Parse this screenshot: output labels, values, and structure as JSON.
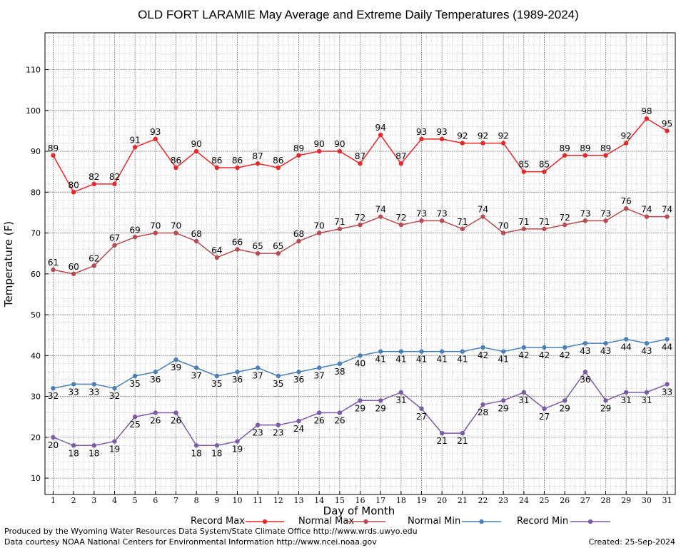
{
  "chart_data": {
    "type": "line",
    "title": "OLD FORT LARAMIE May Average and Extreme Daily Temperatures (1989-2024)",
    "xlabel": "Day of Month",
    "ylabel": "Temperature (F)",
    "x": [
      1,
      2,
      3,
      4,
      5,
      6,
      7,
      8,
      9,
      10,
      11,
      12,
      13,
      14,
      15,
      16,
      17,
      18,
      19,
      20,
      21,
      22,
      23,
      24,
      25,
      26,
      27,
      28,
      29,
      30,
      31
    ],
    "xlim": [
      0.6,
      31.4
    ],
    "ylim": [
      6,
      119
    ],
    "yticks": [
      10,
      20,
      30,
      40,
      50,
      60,
      70,
      80,
      90,
      100,
      110
    ],
    "grid": true,
    "legend_position": "bottom",
    "series": [
      {
        "name": "Record Max",
        "color": "#e8272a",
        "label_pos": "above",
        "values": [
          89,
          80,
          82,
          82,
          91,
          93,
          86,
          90,
          86,
          86,
          87,
          86,
          89,
          90,
          90,
          87,
          94,
          87,
          93,
          93,
          92,
          92,
          92,
          85,
          85,
          89,
          89,
          89,
          92,
          98,
          95
        ]
      },
      {
        "name": "Normal Max",
        "color": "#b84a52",
        "label_pos": "above",
        "values": [
          61,
          60,
          62,
          67,
          69,
          70,
          70,
          68,
          64,
          66,
          65,
          65,
          68,
          70,
          71,
          72,
          74,
          72,
          73,
          73,
          71,
          74,
          70,
          71,
          71,
          72,
          73,
          73,
          76,
          74,
          74
        ]
      },
      {
        "name": "Normal Min",
        "color": "#4a7fb8",
        "label_pos": "below",
        "values": [
          32,
          33,
          33,
          32,
          35,
          36,
          39,
          37,
          35,
          36,
          37,
          35,
          36,
          37,
          38,
          40,
          41,
          41,
          41,
          41,
          41,
          42,
          41,
          42,
          42,
          42,
          43,
          43,
          44,
          43,
          44
        ]
      },
      {
        "name": "Record Min",
        "color": "#7b5aa6",
        "label_pos": "below",
        "values": [
          20,
          18,
          18,
          19,
          25,
          26,
          26,
          18,
          18,
          19,
          23,
          23,
          24,
          26,
          26,
          29,
          29,
          31,
          27,
          21,
          21,
          28,
          29,
          31,
          27,
          29,
          36,
          29,
          31,
          31,
          33
        ]
      }
    ]
  },
  "footer": {
    "produced_by": "Produced by the Wyoming Water Resources Data System/State Climate Office http://www.wrds.uwyo.edu",
    "data_courtesy": "Data courtesy NOAA National Centers for Environmental Information http://www.ncei.noaa.gov",
    "created": "Created:  25-Sep-2024"
  }
}
